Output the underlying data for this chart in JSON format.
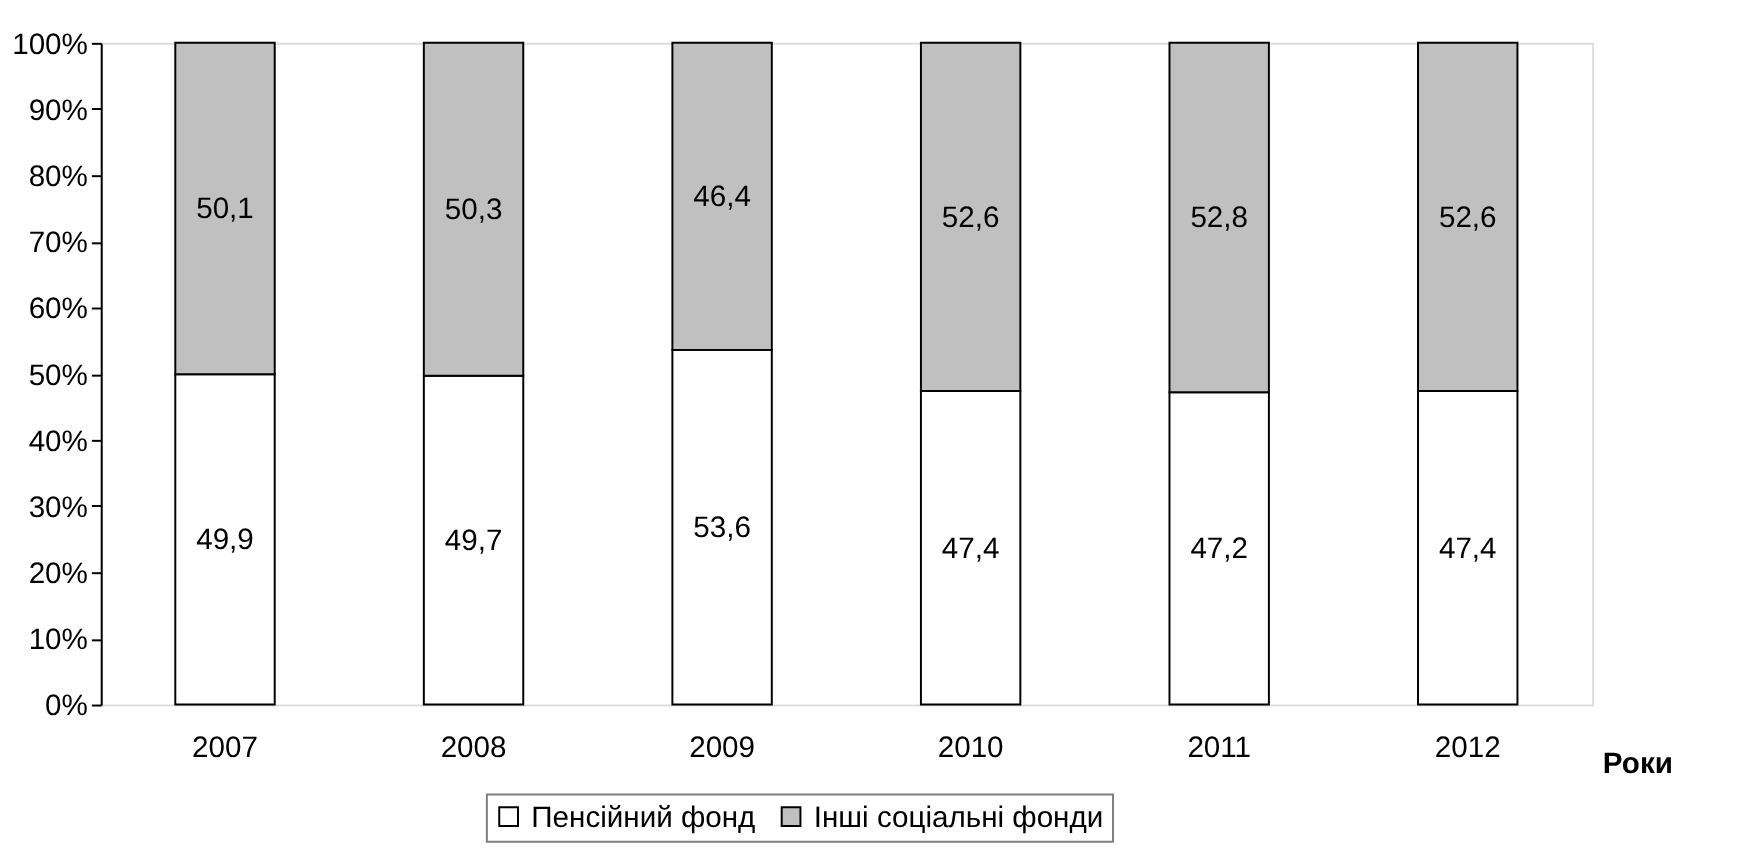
{
  "chart_data": {
    "type": "bar",
    "stacked": true,
    "xlabel": "Роки",
    "categories": [
      "2007",
      "2008",
      "2009",
      "2010",
      "2011",
      "2012"
    ],
    "series": [
      {
        "name": "Пенсійний фонд",
        "color": "#ffffff",
        "values": [
          49.9,
          49.7,
          53.6,
          47.4,
          47.2,
          47.4
        ],
        "value_labels": [
          "49,9",
          "49,7",
          "53,6",
          "47,4",
          "47,2",
          "47,4"
        ]
      },
      {
        "name": "Інші соціальні фонди",
        "color": "#c0c0c0",
        "values": [
          50.1,
          50.3,
          46.4,
          52.6,
          52.8,
          52.6
        ],
        "value_labels": [
          "50,1",
          "50,3",
          "46,4",
          "52,6",
          "52,8",
          "52,6"
        ]
      }
    ],
    "ylim": [
      0,
      100
    ],
    "yticks": [
      {
        "value": 0,
        "label": "0%"
      },
      {
        "value": 10,
        "label": "10%"
      },
      {
        "value": 20,
        "label": "20%"
      },
      {
        "value": 30,
        "label": "30%"
      },
      {
        "value": 40,
        "label": "40%"
      },
      {
        "value": 50,
        "label": "50%"
      },
      {
        "value": 60,
        "label": "60%"
      },
      {
        "value": 70,
        "label": "70%"
      },
      {
        "value": 80,
        "label": "80%"
      },
      {
        "value": 90,
        "label": "90%"
      },
      {
        "value": 100,
        "label": "100%"
      }
    ],
    "grid": false,
    "legend": "bottom"
  }
}
